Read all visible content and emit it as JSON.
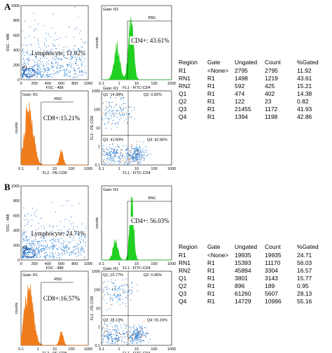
{
  "linear_ticks": [
    "0",
    "200",
    "400",
    "600",
    "800",
    "1000"
  ],
  "log_ticks": [
    "0.1",
    "1",
    "10",
    "100",
    "1000"
  ],
  "panels": [
    {
      "letter": "A",
      "scatter": {
        "region": "R1",
        "annotation": "Lymphocyte: 11.92%",
        "y_label": "SSC - 488",
        "x_label": "FSC - 488"
      },
      "cd4": {
        "gate": "Gate: R1",
        "region": "RN1",
        "annotation": "CD4+: 43.61%",
        "y_label": "counts",
        "x_label": "FL1 - FITC-CD4"
      },
      "cd8": {
        "gate": "Gate: R1",
        "region": "RN2",
        "annotation": "CD8+:15.21%",
        "y_label": "counts",
        "x_label": "FL2 - PE-CD8"
      },
      "quad": {
        "gate": "Gate: R1",
        "q1": "Q1: 14.38%",
        "q2": "Q2: 0.82%",
        "q3": "Q3: 41.93%",
        "q4": "Q4: 42.86%",
        "y_label": "FL2 - PE-CD8",
        "x_label": "FL1 - FITC-CD4"
      },
      "table": {
        "header": [
          "Region",
          "Gate",
          "Ungated",
          "Count",
          "%Gated"
        ],
        "rows": [
          [
            "R1",
            "<None>",
            "2795",
            "2795",
            "11.92"
          ],
          [
            "RN1",
            "R1",
            "1498",
            "1219",
            "43.61"
          ],
          [
            "RN2",
            "R1",
            "592",
            "425",
            "15.21"
          ],
          [
            "Q1",
            "R1",
            "474",
            "402",
            "14.38"
          ],
          [
            "Q2",
            "R1",
            "122",
            "23",
            "0.82"
          ],
          [
            "Q3",
            "R1",
            "21455",
            "1172",
            "41.93"
          ],
          [
            "Q4",
            "R1",
            "1394",
            "1198",
            "42.86"
          ]
        ]
      }
    },
    {
      "letter": "B",
      "scatter": {
        "region": "R1",
        "annotation": "Lymphocyte: 24.71%",
        "y_label": "SSC - 488",
        "x_label": "FSC - 488"
      },
      "cd4": {
        "gate": "Gate: R1",
        "region": "RN1",
        "annotation": "CD4+: 56.03%",
        "y_label": "counts",
        "x_label": "FL1 - FITC-CD4"
      },
      "cd8": {
        "gate": "Gate: R1",
        "region": "RN2",
        "annotation": "CD8+:16.57%",
        "y_label": "counts",
        "x_label": "FL2 - PE-CD8"
      },
      "quad": {
        "gate": "Gate: R1",
        "q1": "Q1: 15.77%",
        "q2": "Q2: 0.95%",
        "q3": "Q3: 28.13%",
        "q4": "Q4: 55.16%",
        "y_label": "FL2 - PE-CD8",
        "x_label": "FL1 - FITC-CD4"
      },
      "table": {
        "header": [
          "Region",
          "Gate",
          "Ungated",
          "Count",
          "%Gated"
        ],
        "rows": [
          [
            "R1",
            "<None>",
            "19935",
            "19935",
            "24.71"
          ],
          [
            "RN1",
            "R1",
            "15393",
            "11170",
            "56.03"
          ],
          [
            "RN2",
            "R1",
            "45894",
            "3304",
            "16.57"
          ],
          [
            "Q1",
            "R1",
            "3801",
            "3143",
            "15.77"
          ],
          [
            "Q2",
            "R1",
            "896",
            "189",
            "0.95"
          ],
          [
            "Q3",
            "R1",
            "61260",
            "5607",
            "28.13"
          ],
          [
            "Q4",
            "R1",
            "14729",
            "10996",
            "55.16"
          ]
        ]
      }
    }
  ]
}
